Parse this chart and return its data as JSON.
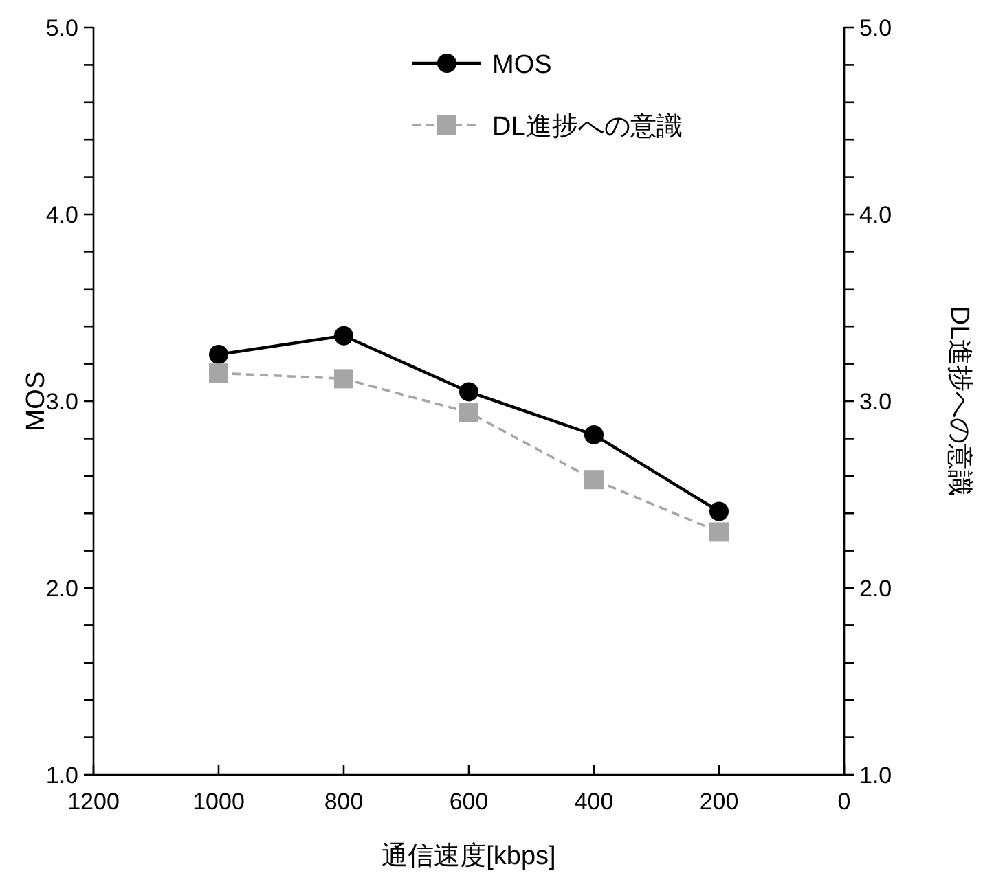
{
  "chart_data": {
    "type": "line",
    "xlabel": "通信速度[kbps]",
    "ylabel": "MOS",
    "y2label": "DL進捗への意識",
    "x": [
      1000,
      800,
      600,
      400,
      200
    ],
    "series": [
      {
        "name": "MOS",
        "color": "#000000",
        "values": [
          3.25,
          3.35,
          3.05,
          2.82,
          2.41
        ],
        "marker": "circle",
        "line_style": "solid"
      },
      {
        "name": "DL進捗への意識",
        "color": "#a6a6a6",
        "values": [
          3.15,
          3.12,
          2.94,
          2.58,
          2.3
        ],
        "marker": "square",
        "line_style": "dashed",
        "axis": "y2"
      }
    ],
    "xlim": [
      1200,
      0
    ],
    "xticks": [
      1200,
      1000,
      800,
      600,
      400,
      200,
      0
    ],
    "ylim": [
      1,
      5
    ],
    "yticks": [
      {
        "value": 1,
        "label": "1.0"
      },
      {
        "value": 1.2,
        "label": null
      },
      {
        "value": 1.4,
        "label": null
      },
      {
        "value": 1.6,
        "label": null
      },
      {
        "value": 1.8,
        "label": null
      },
      {
        "value": 2,
        "label": "2.0"
      },
      {
        "value": 2.2,
        "label": null
      },
      {
        "value": 2.4,
        "label": null
      },
      {
        "value": 2.6,
        "label": null
      },
      {
        "value": 2.8,
        "label": null
      },
      {
        "value": 3,
        "label": "3.0"
      },
      {
        "value": 3.2,
        "label": null
      },
      {
        "value": 3.4,
        "label": null
      },
      {
        "value": 3.6,
        "label": null
      },
      {
        "value": 3.8,
        "label": null
      },
      {
        "value": 4,
        "label": "4.0"
      },
      {
        "value": 4.2,
        "label": null
      },
      {
        "value": 4.4,
        "label": null
      },
      {
        "value": 4.6,
        "label": null
      },
      {
        "value": 4.8,
        "label": null
      },
      {
        "value": 5,
        "label": "5.0"
      }
    ],
    "y2lim": [
      1,
      5
    ],
    "y2ticks": [
      {
        "value": 1,
        "label": "1.0"
      },
      {
        "value": 1.2,
        "label": null
      },
      {
        "value": 1.4,
        "label": null
      },
      {
        "value": 1.6,
        "label": null
      },
      {
        "value": 1.8,
        "label": null
      },
      {
        "value": 2,
        "label": "2.0"
      },
      {
        "value": 2.2,
        "label": null
      },
      {
        "value": 2.4,
        "label": null
      },
      {
        "value": 2.6,
        "label": null
      },
      {
        "value": 2.8,
        "label": null
      },
      {
        "value": 3,
        "label": "3.0"
      },
      {
        "value": 3.2,
        "label": null
      },
      {
        "value": 3.4,
        "label": null
      },
      {
        "value": 3.6,
        "label": null
      },
      {
        "value": 3.8,
        "label": null
      },
      {
        "value": 4,
        "label": "4.0"
      },
      {
        "value": 4.2,
        "label": null
      },
      {
        "value": 4.4,
        "label": null
      },
      {
        "value": 4.6,
        "label": null
      },
      {
        "value": 4.8,
        "label": null
      },
      {
        "value": 5,
        "label": "5.0"
      }
    ],
    "grid": false,
    "legend": "top"
  }
}
